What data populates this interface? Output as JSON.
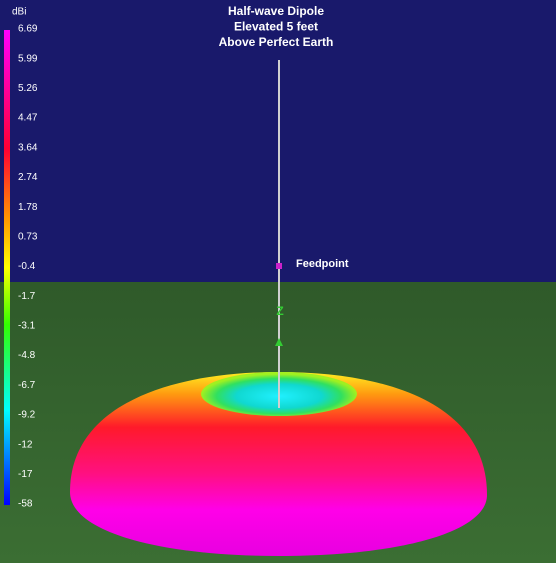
{
  "title_lines": [
    "Half-wave Dipole",
    "Elevated 5 feet",
    "Above Perfect Earth"
  ],
  "scale": {
    "unit": "dBi",
    "labels": [
      "6.69",
      "5.99",
      "5.26",
      "4.47",
      "3.64",
      "2.74",
      "1.78",
      "0.73",
      "-0.4",
      "-1.7",
      "-3.1",
      "-4.8",
      "-6.7",
      "-9.2",
      "-12",
      "-17",
      "-58"
    ]
  },
  "feedpoint_label": "Feedpoint",
  "axis_label": "Z"
}
